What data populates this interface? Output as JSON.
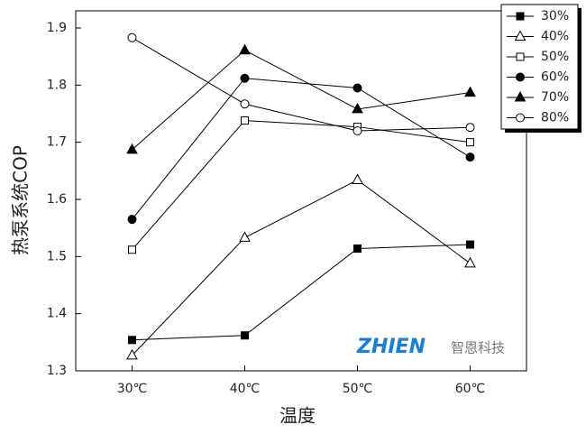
{
  "chart_data": {
    "type": "line",
    "x_label": "温度",
    "y_label": "热泵系统COP",
    "categories": [
      "30℃",
      "40℃",
      "50℃",
      "60℃"
    ],
    "series": [
      {
        "name": "30%",
        "color": "#000000",
        "marker": "square",
        "filled": true,
        "values": [
          1.354,
          1.362,
          1.514,
          1.521
        ]
      },
      {
        "name": "40%",
        "color": "#000000",
        "marker": "triangle",
        "filled": false,
        "values": [
          1.327,
          1.533,
          1.634,
          1.488
        ]
      },
      {
        "name": "50%",
        "color": "#000000",
        "marker": "square",
        "filled": false,
        "values": [
          1.512,
          1.738,
          1.727,
          1.7
        ]
      },
      {
        "name": "60%",
        "color": "#000000",
        "marker": "circle",
        "filled": true,
        "values": [
          1.565,
          1.812,
          1.795,
          1.674
        ]
      },
      {
        "name": "70%",
        "color": "#000000",
        "marker": "triangle",
        "filled": true,
        "values": [
          1.687,
          1.861,
          1.758,
          1.787
        ]
      },
      {
        "name": "80%",
        "color": "#000000",
        "marker": "circle",
        "filled": false,
        "values": [
          1.883,
          1.767,
          1.72,
          1.726
        ]
      }
    ],
    "ylim": [
      1.3,
      1.93
    ],
    "yticks": [
      1.3,
      1.4,
      1.5,
      1.6,
      1.7,
      1.8,
      1.9
    ],
    "legend": "top-right",
    "watermark": {
      "brand": "ZHIEN",
      "company": "智恩科技"
    }
  }
}
